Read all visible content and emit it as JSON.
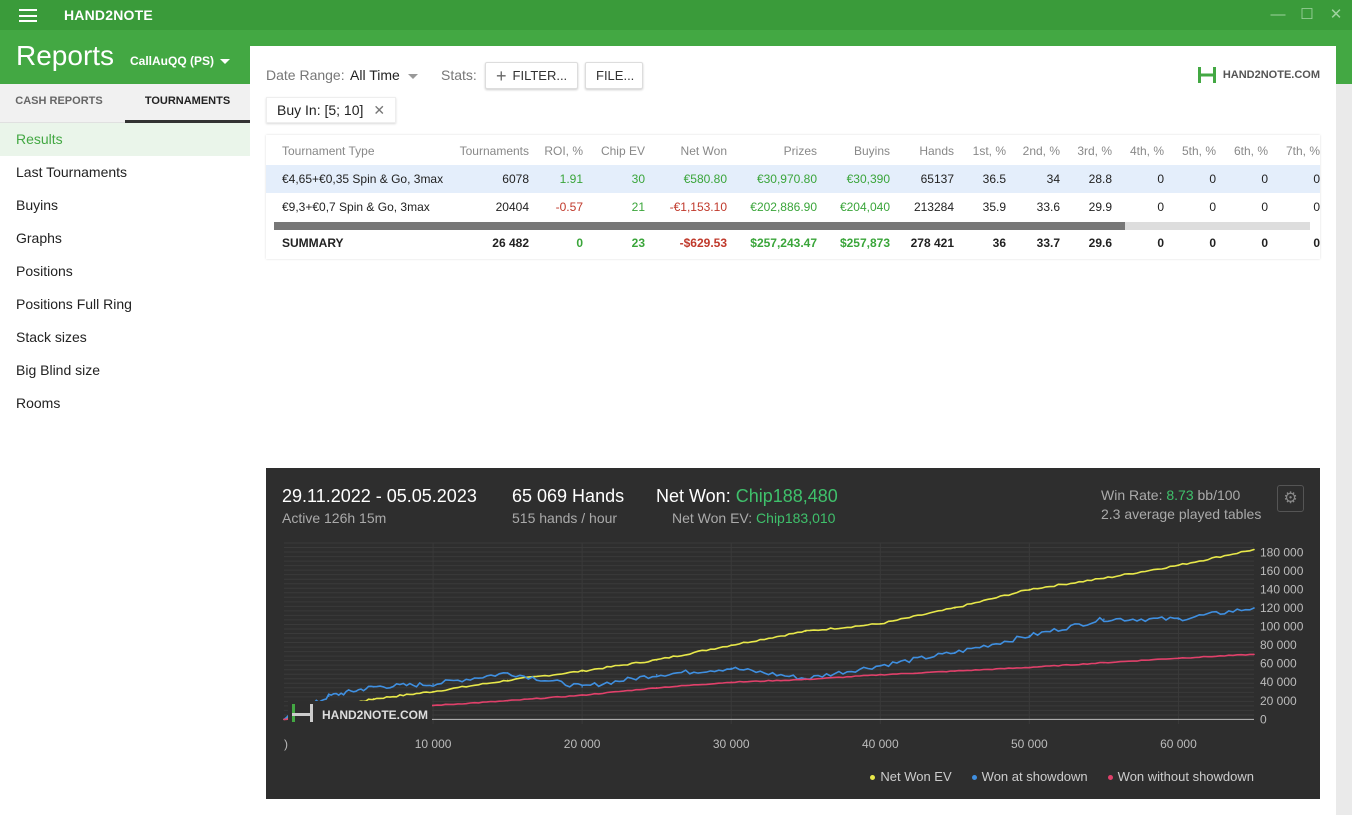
{
  "app": {
    "title": "HAND2NOTE",
    "window_controls": [
      "minimize-icon",
      "maximize-icon",
      "close-icon"
    ]
  },
  "header": {
    "title": "Reports",
    "account": "CallAuQQ (PS)"
  },
  "sidebar": {
    "tabs": [
      {
        "label": "CASH REPORTS"
      },
      {
        "label": "TOURNAMENTS"
      }
    ],
    "items": [
      {
        "label": "Results"
      },
      {
        "label": "Last Tournaments"
      },
      {
        "label": "Buyins"
      },
      {
        "label": "Graphs"
      },
      {
        "label": "Positions"
      },
      {
        "label": "Positions Full Ring"
      },
      {
        "label": "Stack sizes"
      },
      {
        "label": "Big Blind size"
      },
      {
        "label": "Rooms"
      }
    ]
  },
  "toolbar": {
    "date_label": "Date Range:",
    "date_value": "All Time",
    "stats_label": "Stats:",
    "filter_label": "FILTER...",
    "file_label": "FILE...",
    "logo_text": "HAND2NOTE.COM"
  },
  "filter_chip": {
    "label": "Buy In: [5; 10]"
  },
  "table": {
    "headers": [
      "Tournament Type",
      "Tournaments",
      "ROI, %",
      "Chip EV",
      "Net Won",
      "Prizes",
      "Buyins",
      "Hands",
      "1st, %",
      "2nd, %",
      "3rd, %",
      "4th, %",
      "5th, %",
      "6th, %",
      "7th, %"
    ],
    "rows": [
      [
        "€4,65+€0,35 Spin & Go, 3max",
        "6078",
        "1.91",
        "30",
        "€580.80",
        "€30,970.80",
        "€30,390",
        "65137",
        "36.5",
        "34",
        "28.8",
        "0",
        "0",
        "0",
        "0"
      ],
      [
        "€9,3+€0,7 Spin & Go, 3max",
        "20404",
        "-0.57",
        "21",
        "-€1,153.10",
        "€202,886.90",
        "€204,040",
        "213284",
        "35.9",
        "33.6",
        "29.9",
        "0",
        "0",
        "0",
        "0"
      ]
    ],
    "summary": [
      "SUMMARY",
      "26 482",
      "0",
      "23",
      "-$629.53",
      "$257,243.47",
      "$257,873",
      "278 421",
      "36",
      "33.7",
      "29.6",
      "0",
      "0",
      "0",
      "0"
    ]
  },
  "chart_panel": {
    "date_range": "29.11.2022 - 05.05.2023",
    "active": "Active 126h 15m",
    "hands": "65 069 Hands",
    "hands_per_hour": "515 hands / hour",
    "net_won_label": "Net Won: ",
    "net_won_value": "Chip188,480",
    "net_won_ev_label": "Net Won  EV: ",
    "net_won_ev_value": "Chip183,010",
    "win_rate_label": "Win Rate: ",
    "win_rate_value": "8.73",
    "win_rate_unit": " bb/100",
    "tables": "2.3 average played tables",
    "watermark": "HAND2NOTE.COM"
  },
  "chart_data": {
    "type": "line",
    "x_ticks": [
      "10 000",
      "20 000",
      "30 000",
      "40 000",
      "50 000",
      "60 000"
    ],
    "y_ticks": [
      "180 000",
      "160 000",
      "140 000",
      "120 000",
      "100 000",
      "80 000",
      "60 000",
      "40 000",
      "20 000",
      "0"
    ],
    "x_tick_first": ")",
    "xlim": [
      0,
      65069
    ],
    "ylim": [
      -5000,
      190000
    ],
    "series": [
      {
        "name": "Net Won  EV",
        "color": "#e8e84a",
        "x": [
          0,
          3000,
          6000,
          10000,
          15000,
          20000,
          25000,
          30000,
          35000,
          40000,
          45000,
          50000,
          55000,
          60000,
          65069
        ],
        "y": [
          0,
          12000,
          22000,
          30000,
          42000,
          52000,
          64000,
          80000,
          95000,
          103000,
          120000,
          140000,
          152000,
          166000,
          183000
        ]
      },
      {
        "name": "Won at showdown",
        "color": "#3f8fe0",
        "x": [
          0,
          3000,
          6000,
          10000,
          15000,
          20000,
          25000,
          30000,
          35000,
          40000,
          45000,
          50000,
          55000,
          60000,
          65069
        ],
        "y": [
          0,
          25000,
          35000,
          38000,
          50000,
          35000,
          48000,
          55000,
          44000,
          58000,
          72000,
          90000,
          108000,
          108000,
          120000
        ]
      },
      {
        "name": "Won without showdown",
        "color": "#e0406a",
        "x": [
          0,
          3000,
          6000,
          10000,
          15000,
          20000,
          25000,
          30000,
          35000,
          40000,
          45000,
          50000,
          55000,
          60000,
          65069
        ],
        "y": [
          0,
          5000,
          12000,
          15000,
          20000,
          26000,
          34000,
          40000,
          43000,
          48000,
          52000,
          56000,
          61000,
          66000,
          70000
        ]
      }
    ],
    "legend_position": "bottom-right",
    "grid": true
  }
}
